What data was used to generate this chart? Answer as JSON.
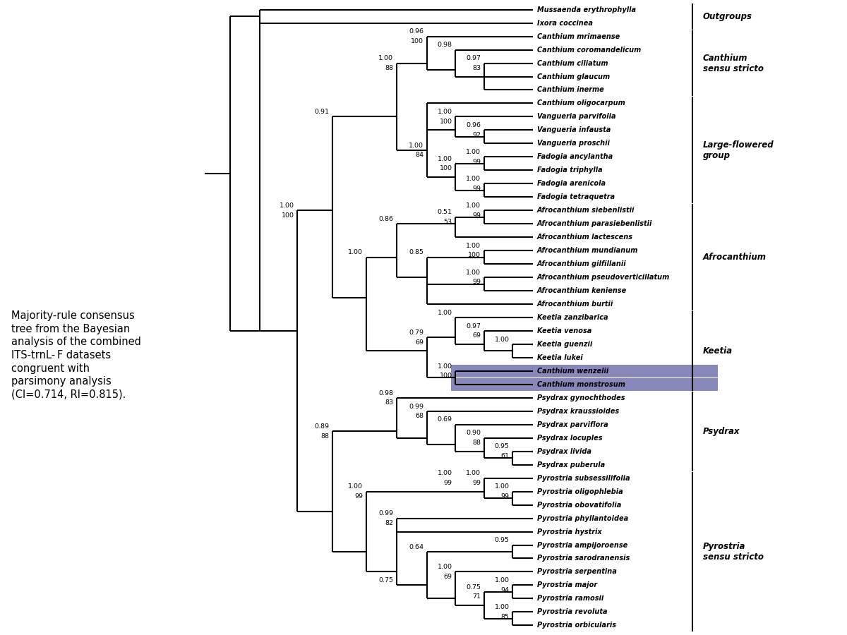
{
  "figure_width": 12.0,
  "figure_height": 9.0,
  "bg_color": "#ffffff",
  "taxa": [
    "Mussaenda erythrophylla",
    "Ixora coccinea",
    "Canthium mrimaense",
    "Canthium coromandelicum",
    "Canthium ciliatum",
    "Canthium glaucum",
    "Canthium inerme",
    "Canthium oligocarpum",
    "Vangueria parvifolia",
    "Vangueria infausta",
    "Vangueria proschii",
    "Fadogia ancylantha",
    "Fadogia triphylla",
    "Fadogia arenicola",
    "Fadogia tetraquetra",
    "Afrocanthium siebenlistii",
    "Afrocanthium parasiebenlistii",
    "Afrocanthium lactescens",
    "Afrocanthium mundianum",
    "Afrocanthium gilfillanii",
    "Afrocanthium pseudoverticillatum",
    "Afrocanthium keniense",
    "Afrocanthium burtii",
    "Keetia zanzibarica",
    "Keetia venosa",
    "Keetia guenzii",
    "Keetia lukei",
    "Canthium wenzelii",
    "Canthium monstrosum",
    "Psydrax gynochthodes",
    "Psydrax kraussioides",
    "Psydrax parviflora",
    "Psydrax locuples",
    "Psydrax livida",
    "Psydrax puberula",
    "Pyrostria subsessilifolia",
    "Pyrostria oligophlebia",
    "Pyrostria obovatifolia",
    "Pyrostria phyllantoidea",
    "Pyrostria hystrix",
    "Pyrostria ampijoroense",
    "Pyrostria sarodranensis",
    "Pyrostria serpentina",
    "Pyrostria major",
    "Pyrostria ramosii",
    "Pyrostria revoluta",
    "Pyrostria orbicularis"
  ],
  "highlighted_taxa": [
    "Canthium wenzelii",
    "Canthium monstrosum"
  ],
  "highlight_color": "#8888bb",
  "caption": "Majority-rule consensus\ntree from the Bayesian\nanalysis of the combined\nITS-trnL-F datasets\ncongruent with\nparsimony analysis\n(CI=0.714, RI=0.815).",
  "group_info": [
    {
      "name": "Outgroups",
      "start": 0,
      "end": 1
    },
    {
      "name": "Canthium\nsensu stricto",
      "start": 2,
      "end": 6
    },
    {
      "name": "Large-flowered\ngroup",
      "start": 7,
      "end": 14
    },
    {
      "name": "Afrocanthium",
      "start": 15,
      "end": 22
    },
    {
      "name": "Keetia",
      "start": 23,
      "end": 28
    },
    {
      "name": "Psydrax",
      "start": 29,
      "end": 34
    },
    {
      "name": "Pyrostria\nsensu stricto",
      "start": 35,
      "end": 46
    }
  ]
}
